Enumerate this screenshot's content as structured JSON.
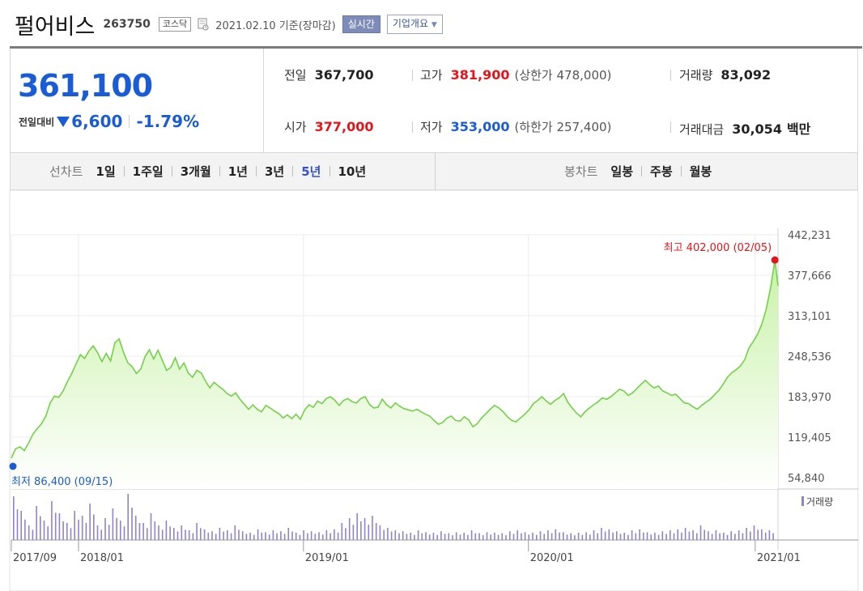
{
  "header": {
    "company": "펄어비스",
    "code": "263750",
    "market": "코스닥",
    "date": "2021.02.10 기준(장마감)",
    "realtime_label": "실시간",
    "overview_label": "기업개요"
  },
  "quote": {
    "price": "361,100",
    "diff_label": "전일대비",
    "diff": "6,600",
    "rate": "-1.79%",
    "prev_label": "전일",
    "prev": "367,700",
    "high_label": "고가",
    "high": "381,900",
    "upper_limit": "(상한가 478,000)",
    "volume_label": "거래량",
    "volume": "83,092",
    "open_label": "시가",
    "open": "377,000",
    "low_label": "저가",
    "low": "353,000",
    "lower_limit": "(하한가 257,400)",
    "amount_label": "거래대금",
    "amount": "30,054",
    "amount_unit": "백만"
  },
  "tabs": {
    "line_title": "선차트",
    "line": [
      "1일",
      "1주일",
      "3개월",
      "1년",
      "3년",
      "5년",
      "10년"
    ],
    "active": "5년",
    "candle_title": "봉차트",
    "candle": [
      "일봉",
      "주봉",
      "월봉"
    ]
  },
  "colors": {
    "price_up": "#e5141a",
    "price_down": "#1a5bd6",
    "line": "#74d04a",
    "area_top": "#c9f2a8",
    "area_bottom": "#ffffff",
    "volume_bar": "#8f84c9"
  },
  "chart_data": {
    "type": "area",
    "title": "",
    "y_ticks": [
      "442,231",
      "377,666",
      "313,101",
      "248,536",
      "183,970",
      "119,405",
      "54,840"
    ],
    "ylim": [
      54840,
      442231
    ],
    "x_start": "2017-09-15",
    "x_end": "2021-02-10",
    "x_ticks": [
      {
        "label": "2017/09",
        "date": "2017-09-15"
      },
      {
        "label": "2018/01",
        "date": "2018-01-02"
      },
      {
        "label": "2019/01",
        "date": "2019-01-02"
      },
      {
        "label": "2020/01",
        "date": "2020-01-02"
      },
      {
        "label": "2021/01",
        "date": "2021-01-04"
      }
    ],
    "max_label": "최고 402,000 (02/05)",
    "max": {
      "date": "2021-02-05",
      "value": 402000
    },
    "min_label": "최저 86,400 (09/15)",
    "min": {
      "date": "2017-09-15",
      "value": 86400
    },
    "volume_legend": "거래량",
    "series": [
      {
        "values": [
          [
            "2017-09-15",
            86400
          ],
          [
            "2017-09-22",
            101000
          ],
          [
            "2017-09-29",
            104000
          ],
          [
            "2017-10-06",
            98000
          ],
          [
            "2017-10-13",
            110000
          ],
          [
            "2017-10-20",
            124000
          ],
          [
            "2017-10-27",
            133000
          ],
          [
            "2017-11-03",
            141000
          ],
          [
            "2017-11-10",
            153000
          ],
          [
            "2017-11-17",
            174000
          ],
          [
            "2017-11-24",
            185000
          ],
          [
            "2017-12-01",
            183000
          ],
          [
            "2017-12-08",
            193000
          ],
          [
            "2017-12-15",
            208000
          ],
          [
            "2017-12-22",
            221000
          ],
          [
            "2017-12-29",
            236000
          ],
          [
            "2018-01-05",
            251000
          ],
          [
            "2018-01-12",
            245000
          ],
          [
            "2018-01-19",
            257000
          ],
          [
            "2018-01-26",
            265000
          ],
          [
            "2018-02-02",
            254000
          ],
          [
            "2018-02-09",
            240000
          ],
          [
            "2018-02-16",
            253000
          ],
          [
            "2018-02-23",
            241000
          ],
          [
            "2018-03-02",
            270000
          ],
          [
            "2018-03-09",
            276000
          ],
          [
            "2018-03-16",
            255000
          ],
          [
            "2018-03-23",
            238000
          ],
          [
            "2018-03-30",
            232000
          ],
          [
            "2018-04-06",
            221000
          ],
          [
            "2018-04-13",
            228000
          ],
          [
            "2018-04-20",
            248000
          ],
          [
            "2018-04-27",
            259000
          ],
          [
            "2018-05-04",
            244000
          ],
          [
            "2018-05-11",
            258000
          ],
          [
            "2018-05-18",
            242000
          ],
          [
            "2018-05-25",
            226000
          ],
          [
            "2018-06-01",
            231000
          ],
          [
            "2018-06-08",
            246000
          ],
          [
            "2018-06-15",
            228000
          ],
          [
            "2018-06-22",
            238000
          ],
          [
            "2018-06-29",
            222000
          ],
          [
            "2018-07-06",
            215000
          ],
          [
            "2018-07-13",
            226000
          ],
          [
            "2018-07-20",
            222000
          ],
          [
            "2018-07-27",
            209000
          ],
          [
            "2018-08-03",
            198000
          ],
          [
            "2018-08-10",
            207000
          ],
          [
            "2018-08-17",
            201000
          ],
          [
            "2018-08-24",
            196000
          ],
          [
            "2018-08-31",
            189000
          ],
          [
            "2018-09-07",
            185000
          ],
          [
            "2018-09-14",
            190000
          ],
          [
            "2018-09-21",
            180000
          ],
          [
            "2018-09-28",
            172000
          ],
          [
            "2018-10-05",
            164000
          ],
          [
            "2018-10-12",
            171000
          ],
          [
            "2018-10-19",
            164000
          ],
          [
            "2018-10-26",
            160000
          ],
          [
            "2018-11-02",
            170000
          ],
          [
            "2018-11-09",
            166000
          ],
          [
            "2018-11-16",
            161000
          ],
          [
            "2018-11-23",
            157000
          ],
          [
            "2018-11-30",
            150000
          ],
          [
            "2018-12-07",
            155000
          ],
          [
            "2018-12-14",
            149000
          ],
          [
            "2018-12-21",
            156000
          ],
          [
            "2018-12-28",
            148000
          ],
          [
            "2019-01-04",
            163000
          ],
          [
            "2019-01-11",
            171000
          ],
          [
            "2019-01-18",
            167000
          ],
          [
            "2019-01-25",
            177000
          ],
          [
            "2019-02-01",
            173000
          ],
          [
            "2019-02-08",
            181000
          ],
          [
            "2019-02-15",
            184000
          ],
          [
            "2019-02-22",
            178000
          ],
          [
            "2019-03-01",
            170000
          ],
          [
            "2019-03-08",
            178000
          ],
          [
            "2019-03-15",
            181000
          ],
          [
            "2019-03-22",
            176000
          ],
          [
            "2019-03-29",
            174000
          ],
          [
            "2019-04-05",
            181000
          ],
          [
            "2019-04-12",
            184000
          ],
          [
            "2019-04-19",
            172000
          ],
          [
            "2019-04-26",
            166000
          ],
          [
            "2019-05-03",
            167000
          ],
          [
            "2019-05-10",
            180000
          ],
          [
            "2019-05-17",
            171000
          ],
          [
            "2019-05-24",
            166000
          ],
          [
            "2019-05-31",
            174000
          ],
          [
            "2019-06-07",
            169000
          ],
          [
            "2019-06-14",
            165000
          ],
          [
            "2019-06-21",
            163000
          ],
          [
            "2019-06-28",
            161000
          ],
          [
            "2019-07-05",
            164000
          ],
          [
            "2019-07-12",
            160000
          ],
          [
            "2019-07-19",
            156000
          ],
          [
            "2019-07-26",
            153000
          ],
          [
            "2019-08-02",
            146000
          ],
          [
            "2019-08-09",
            140000
          ],
          [
            "2019-08-16",
            143000
          ],
          [
            "2019-08-23",
            150000
          ],
          [
            "2019-08-30",
            153000
          ],
          [
            "2019-09-06",
            146000
          ],
          [
            "2019-09-13",
            145000
          ],
          [
            "2019-09-20",
            152000
          ],
          [
            "2019-09-27",
            147000
          ],
          [
            "2019-10-04",
            136000
          ],
          [
            "2019-10-11",
            141000
          ],
          [
            "2019-10-18",
            150000
          ],
          [
            "2019-10-25",
            157000
          ],
          [
            "2019-11-01",
            164000
          ],
          [
            "2019-11-08",
            170000
          ],
          [
            "2019-11-15",
            166000
          ],
          [
            "2019-11-22",
            160000
          ],
          [
            "2019-11-29",
            152000
          ],
          [
            "2019-12-06",
            146000
          ],
          [
            "2019-12-13",
            144000
          ],
          [
            "2019-12-20",
            150000
          ],
          [
            "2019-12-27",
            156000
          ],
          [
            "2020-01-03",
            163000
          ],
          [
            "2020-01-10",
            173000
          ],
          [
            "2020-01-17",
            178000
          ],
          [
            "2020-01-24",
            184000
          ],
          [
            "2020-01-31",
            177000
          ],
          [
            "2020-02-07",
            172000
          ],
          [
            "2020-02-14",
            178000
          ],
          [
            "2020-02-21",
            182000
          ],
          [
            "2020-02-28",
            189000
          ],
          [
            "2020-03-06",
            175000
          ],
          [
            "2020-03-13",
            166000
          ],
          [
            "2020-03-20",
            158000
          ],
          [
            "2020-03-27",
            152000
          ],
          [
            "2020-04-03",
            160000
          ],
          [
            "2020-04-10",
            166000
          ],
          [
            "2020-04-17",
            171000
          ],
          [
            "2020-04-24",
            176000
          ],
          [
            "2020-05-01",
            182000
          ],
          [
            "2020-05-08",
            180000
          ],
          [
            "2020-05-15",
            184000
          ],
          [
            "2020-05-22",
            190000
          ],
          [
            "2020-05-29",
            196000
          ],
          [
            "2020-06-05",
            193000
          ],
          [
            "2020-06-12",
            186000
          ],
          [
            "2020-06-19",
            190000
          ],
          [
            "2020-06-26",
            197000
          ],
          [
            "2020-07-03",
            204000
          ],
          [
            "2020-07-10",
            210000
          ],
          [
            "2020-07-17",
            203000
          ],
          [
            "2020-07-24",
            198000
          ],
          [
            "2020-07-31",
            201000
          ],
          [
            "2020-08-07",
            193000
          ],
          [
            "2020-08-14",
            190000
          ],
          [
            "2020-08-21",
            186000
          ],
          [
            "2020-08-28",
            188000
          ],
          [
            "2020-09-04",
            181000
          ],
          [
            "2020-09-11",
            174000
          ],
          [
            "2020-09-18",
            173000
          ],
          [
            "2020-09-25",
            168000
          ],
          [
            "2020-10-02",
            164000
          ],
          [
            "2020-10-09",
            170000
          ],
          [
            "2020-10-16",
            175000
          ],
          [
            "2020-10-23",
            180000
          ],
          [
            "2020-10-30",
            187000
          ],
          [
            "2020-11-06",
            194000
          ],
          [
            "2020-11-13",
            204000
          ],
          [
            "2020-11-20",
            215000
          ],
          [
            "2020-11-27",
            222000
          ],
          [
            "2020-12-04",
            227000
          ],
          [
            "2020-12-11",
            233000
          ],
          [
            "2020-12-18",
            243000
          ],
          [
            "2020-12-25",
            262000
          ],
          [
            "2021-01-01",
            272000
          ],
          [
            "2021-01-08",
            284000
          ],
          [
            "2021-01-15",
            300000
          ],
          [
            "2021-01-22",
            324000
          ],
          [
            "2021-01-29",
            358000
          ],
          [
            "2021-02-05",
            402000
          ],
          [
            "2021-02-10",
            361100
          ]
        ]
      }
    ]
  }
}
